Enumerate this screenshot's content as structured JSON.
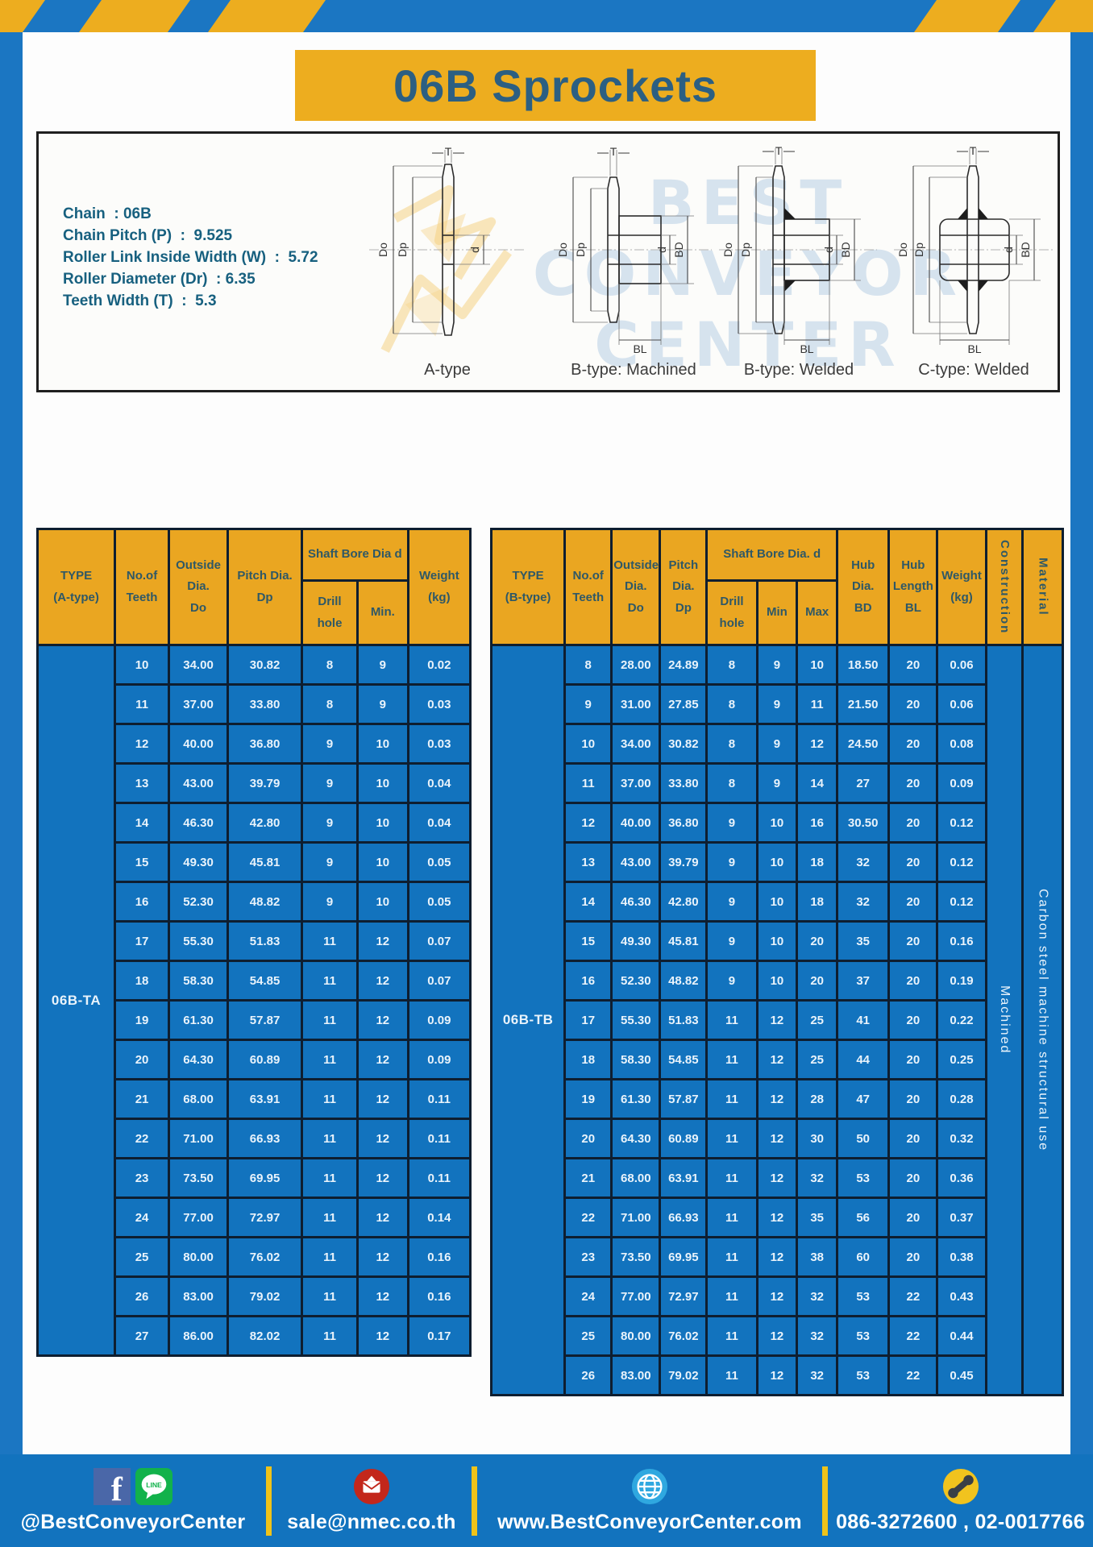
{
  "page": {
    "title": "06B Sprockets"
  },
  "specs": {
    "lines": [
      "Chain  : 06B",
      "Chain Pitch (P)  :  9.525",
      "Roller Link Inside Width (W)  :  5.72",
      "Roller Diameter (Dr)  : 6.35",
      "Teeth Width (T)  :  5.3"
    ]
  },
  "diagram": {
    "watermark_lines": [
      "BEST",
      "CONVEYOR",
      "CENTER"
    ],
    "dims": {
      "t": "T",
      "do": "Do",
      "dp": "Dp",
      "d": "d",
      "bd": "BD",
      "bl": "BL"
    },
    "captions": [
      "A-type",
      "B-type: Machined",
      "B-type: Welded",
      "C-type: Welded"
    ]
  },
  "table_a": {
    "headers": {
      "type": "TYPE\n(A-type)",
      "teeth": "No.of\nTeeth",
      "outside": "Outside\nDia.\nDo",
      "pitch": "Pitch Dia.\nDp",
      "shaft_bore": "Shaft Bore Dia d",
      "drill": "Drill hole",
      "min": "Min.",
      "weight": "Weight\n(kg)"
    },
    "type_value": "06B-TA",
    "rows": [
      [
        "10",
        "34.00",
        "30.82",
        "8",
        "9",
        "0.02"
      ],
      [
        "11",
        "37.00",
        "33.80",
        "8",
        "9",
        "0.03"
      ],
      [
        "12",
        "40.00",
        "36.80",
        "9",
        "10",
        "0.03"
      ],
      [
        "13",
        "43.00",
        "39.79",
        "9",
        "10",
        "0.04"
      ],
      [
        "14",
        "46.30",
        "42.80",
        "9",
        "10",
        "0.04"
      ],
      [
        "15",
        "49.30",
        "45.81",
        "9",
        "10",
        "0.05"
      ],
      [
        "16",
        "52.30",
        "48.82",
        "9",
        "10",
        "0.05"
      ],
      [
        "17",
        "55.30",
        "51.83",
        "11",
        "12",
        "0.07"
      ],
      [
        "18",
        "58.30",
        "54.85",
        "11",
        "12",
        "0.07"
      ],
      [
        "19",
        "61.30",
        "57.87",
        "11",
        "12",
        "0.09"
      ],
      [
        "20",
        "64.30",
        "60.89",
        "11",
        "12",
        "0.09"
      ],
      [
        "21",
        "68.00",
        "63.91",
        "11",
        "12",
        "0.11"
      ],
      [
        "22",
        "71.00",
        "66.93",
        "11",
        "12",
        "0.11"
      ],
      [
        "23",
        "73.50",
        "69.95",
        "11",
        "12",
        "0.11"
      ],
      [
        "24",
        "77.00",
        "72.97",
        "11",
        "12",
        "0.14"
      ],
      [
        "25",
        "80.00",
        "76.02",
        "11",
        "12",
        "0.16"
      ],
      [
        "26",
        "83.00",
        "79.02",
        "11",
        "12",
        "0.16"
      ],
      [
        "27",
        "86.00",
        "82.02",
        "11",
        "12",
        "0.17"
      ]
    ]
  },
  "table_b": {
    "headers": {
      "type": "TYPE\n(B-type)",
      "teeth": "No.of\nTeeth",
      "outside": "Outside\nDia.\nDo",
      "pitch": "Pitch\nDia.\nDp",
      "shaft_bore": "Shaft Bore Dia.  d",
      "drill": "Drill hole",
      "min": "Min",
      "max": "Max",
      "hub_dia": "Hub\nDia.\nBD",
      "hub_len": "Hub\nLength\nBL",
      "weight": "Weight\n(kg)",
      "construction": "Construction",
      "material": "Material"
    },
    "type_value": "06B-TB",
    "construction_value": "Machined",
    "material_value": "Carbon  steel  machine  structural  use",
    "rows": [
      [
        "8",
        "28.00",
        "24.89",
        "8",
        "9",
        "10",
        "18.50",
        "20",
        "0.06"
      ],
      [
        "9",
        "31.00",
        "27.85",
        "8",
        "9",
        "11",
        "21.50",
        "20",
        "0.06"
      ],
      [
        "10",
        "34.00",
        "30.82",
        "8",
        "9",
        "12",
        "24.50",
        "20",
        "0.08"
      ],
      [
        "11",
        "37.00",
        "33.80",
        "8",
        "9",
        "14",
        "27",
        "20",
        "0.09"
      ],
      [
        "12",
        "40.00",
        "36.80",
        "9",
        "10",
        "16",
        "30.50",
        "20",
        "0.12"
      ],
      [
        "13",
        "43.00",
        "39.79",
        "9",
        "10",
        "18",
        "32",
        "20",
        "0.12"
      ],
      [
        "14",
        "46.30",
        "42.80",
        "9",
        "10",
        "18",
        "32",
        "20",
        "0.12"
      ],
      [
        "15",
        "49.30",
        "45.81",
        "9",
        "10",
        "20",
        "35",
        "20",
        "0.16"
      ],
      [
        "16",
        "52.30",
        "48.82",
        "9",
        "10",
        "20",
        "37",
        "20",
        "0.19"
      ],
      [
        "17",
        "55.30",
        "51.83",
        "11",
        "12",
        "25",
        "41",
        "20",
        "0.22"
      ],
      [
        "18",
        "58.30",
        "54.85",
        "11",
        "12",
        "25",
        "44",
        "20",
        "0.25"
      ],
      [
        "19",
        "61.30",
        "57.87",
        "11",
        "12",
        "28",
        "47",
        "20",
        "0.28"
      ],
      [
        "20",
        "64.30",
        "60.89",
        "11",
        "12",
        "30",
        "50",
        "20",
        "0.32"
      ],
      [
        "21",
        "68.00",
        "63.91",
        "11",
        "12",
        "32",
        "53",
        "20",
        "0.36"
      ],
      [
        "22",
        "71.00",
        "66.93",
        "11",
        "12",
        "35",
        "56",
        "20",
        "0.37"
      ],
      [
        "23",
        "73.50",
        "69.95",
        "11",
        "12",
        "38",
        "60",
        "20",
        "0.38"
      ],
      [
        "24",
        "77.00",
        "72.97",
        "11",
        "12",
        "32",
        "53",
        "22",
        "0.43"
      ],
      [
        "25",
        "80.00",
        "76.02",
        "11",
        "12",
        "32",
        "53",
        "22",
        "0.44"
      ],
      [
        "26",
        "83.00",
        "79.02",
        "11",
        "12",
        "32",
        "53",
        "22",
        "0.45"
      ]
    ]
  },
  "footer": {
    "items": [
      {
        "label": "@BestConveyorCenter"
      },
      {
        "label": "sale@nmec.co.th"
      },
      {
        "label": "www.BestConveyorCenter.com"
      },
      {
        "label": "086-3272600 , 02-0017766"
      }
    ],
    "line_badge": "LINE"
  },
  "colors": {
    "blue": "#1273BE",
    "yellow": "#EDAD1F",
    "header_yellow": "#EAA621",
    "table_border": "#0E1E30",
    "title_text": "#2C5F82",
    "spec_text": "#17607F"
  }
}
